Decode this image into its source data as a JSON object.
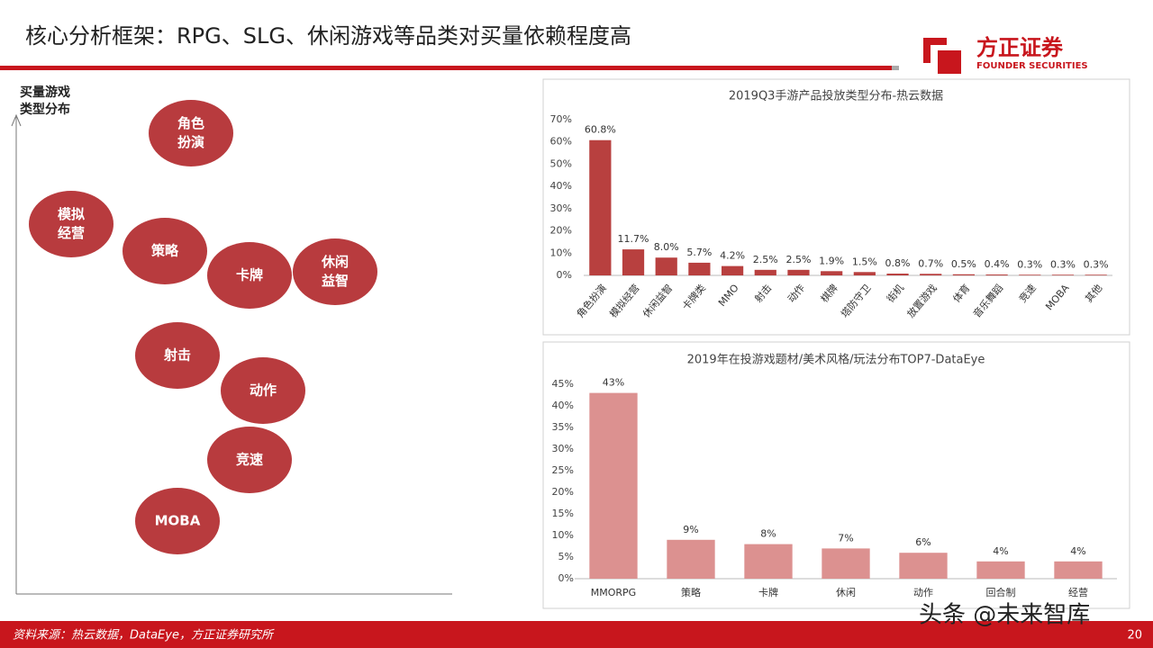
{
  "header": {
    "title": "核心分析框架：RPG、SLG、休闲游戏等品类对买量依赖程度高",
    "logo": {
      "name": "方正证券",
      "subname": "FOUNDER SECURITIES"
    }
  },
  "diagram": {
    "axis_label": [
      "买量游戏",
      "类型分布"
    ],
    "nodes": [
      {
        "label": [
          "角色",
          "扮演"
        ]
      },
      {
        "label": [
          "模拟",
          "经营"
        ]
      },
      {
        "label": [
          "策略"
        ]
      },
      {
        "label": [
          "卡牌"
        ]
      },
      {
        "label": [
          "休闲",
          "益智"
        ]
      },
      {
        "label": [
          "射击"
        ]
      },
      {
        "label": [
          "动作"
        ]
      },
      {
        "label": [
          "竞速"
        ]
      },
      {
        "label": [
          "MOBA"
        ]
      }
    ]
  },
  "chart_data": [
    {
      "type": "bar",
      "title": "2019Q3手游产品投放类型分布-热云数据",
      "color": "#b8403f",
      "categories": [
        "角色扮演",
        "模拟经营",
        "休闲益智",
        "卡牌类",
        "MMO",
        "射击",
        "动作",
        "棋牌",
        "塔防守卫",
        "街机",
        "放置游戏",
        "体育",
        "音乐舞蹈",
        "竞速",
        "MOBA",
        "其他"
      ],
      "values": [
        60.8,
        11.7,
        8.0,
        5.7,
        4.2,
        2.5,
        2.5,
        1.9,
        1.5,
        0.8,
        0.7,
        0.5,
        0.4,
        0.3,
        0.3,
        0.3
      ],
      "value_labels": [
        "60.8%",
        "11.7%",
        "8.0%",
        "5.7%",
        "4.2%",
        "2.5%",
        "2.5%",
        "1.9%",
        "1.5%",
        "0.8%",
        "0.7%",
        "0.5%",
        "0.4%",
        "0.3%",
        "0.3%",
        "0.3%"
      ],
      "ylim": [
        0,
        70
      ],
      "yticks": [
        {
          "value": 0,
          "label": "0%"
        },
        {
          "value": 10,
          "label": "10%"
        },
        {
          "value": 20,
          "label": "20%"
        },
        {
          "value": 30,
          "label": "30%"
        },
        {
          "value": 40,
          "label": "40%"
        },
        {
          "value": 50,
          "label": "50%"
        },
        {
          "value": 60,
          "label": "60%"
        },
        {
          "value": 70,
          "label": "70%"
        }
      ]
    },
    {
      "type": "bar",
      "title": "2019年在投游戏题材/美术风格/玩法分布TOP7-DataEye",
      "color": "#dc9190",
      "categories": [
        "MMORPG",
        "策略",
        "卡牌",
        "休闲",
        "动作",
        "回合制",
        "经营"
      ],
      "values": [
        43,
        9,
        8,
        7,
        6,
        4,
        4
      ],
      "value_labels": [
        "43%",
        "9%",
        "8%",
        "7%",
        "6%",
        "4%",
        "4%"
      ],
      "ylim": [
        0,
        45
      ],
      "yticks": [
        {
          "value": 0,
          "label": "0%"
        },
        {
          "value": 5,
          "label": "5%"
        },
        {
          "value": 10,
          "label": "10%"
        },
        {
          "value": 15,
          "label": "15%"
        },
        {
          "value": 20,
          "label": "20%"
        },
        {
          "value": 25,
          "label": "25%"
        },
        {
          "value": 30,
          "label": "30%"
        },
        {
          "value": 35,
          "label": "35%"
        },
        {
          "value": 40,
          "label": "40%"
        },
        {
          "value": 45,
          "label": "45%"
        }
      ]
    }
  ],
  "footer": {
    "source": "资料来源：热云数据，DataEye，方正证券研究所",
    "page": "20",
    "watermark": "头条 @未来智库"
  }
}
